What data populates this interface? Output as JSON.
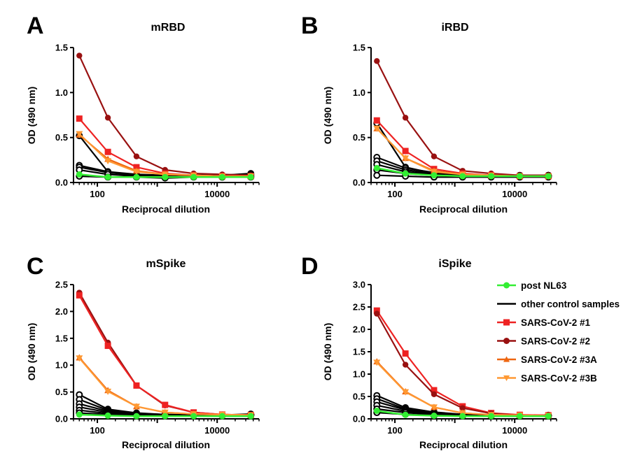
{
  "colors": {
    "post_nl63": "#33ee33",
    "control": "#000000",
    "sars1": "#ee2222",
    "sars2": "#991111",
    "sars3a": "#ee6611",
    "sars3b": "#ff9933"
  },
  "legend": [
    {
      "label": "post NL63",
      "color": "#33ee33",
      "marker": "circle"
    },
    {
      "label": "other control samples",
      "color": "#000000",
      "marker": "none"
    },
    {
      "label": "SARS-CoV-2 #1",
      "color": "#ee2222",
      "marker": "square"
    },
    {
      "label": "SARS-CoV-2 #2",
      "color": "#991111",
      "marker": "circle"
    },
    {
      "label": "SARS-CoV-2 #3A",
      "color": "#ee6611",
      "marker": "triangle-up"
    },
    {
      "label": "SARS-CoV-2 #3B",
      "color": "#ff9933",
      "marker": "triangle-down"
    }
  ],
  "chart_data": [
    {
      "letter": "A",
      "type": "line",
      "title": "mRBD",
      "xlabel": "Reciprocal dilution",
      "ylabel": "OD (490 nm)",
      "xscale": "log",
      "xticks": [
        100,
        10000
      ],
      "xtick_labels": [
        "100",
        "10000"
      ],
      "ylim": [
        0,
        1.5
      ],
      "yticks": [
        "0.0",
        "0.5",
        "1.0",
        "1.5"
      ],
      "x": [
        50,
        150,
        450,
        1350,
        4050,
        12150,
        36450
      ],
      "series": [
        {
          "name": "other control samples",
          "values": [
            0.52,
            0.12,
            0.08,
            0.07,
            0.08,
            0.08,
            0.1
          ]
        },
        {
          "name": "other control samples",
          "values": [
            0.19,
            0.12,
            0.09,
            0.08,
            0.08,
            0.08,
            0.09
          ]
        },
        {
          "name": "other control samples",
          "values": [
            0.17,
            0.11,
            0.08,
            0.07,
            0.07,
            0.07,
            0.08
          ]
        },
        {
          "name": "other control samples",
          "values": [
            0.14,
            0.09,
            0.07,
            0.06,
            0.07,
            0.06,
            0.07
          ]
        },
        {
          "name": "other control samples",
          "values": [
            0.07,
            0.06,
            0.06,
            0.05,
            0.06,
            0.06,
            0.06
          ]
        },
        {
          "name": "SARS-CoV-2 #2",
          "values": [
            1.41,
            0.72,
            0.29,
            0.14,
            0.1,
            0.09,
            0.08
          ]
        },
        {
          "name": "SARS-CoV-2 #1",
          "values": [
            0.71,
            0.34,
            0.17,
            0.1,
            0.08,
            0.07,
            0.07
          ]
        },
        {
          "name": "SARS-CoV-2 #3A",
          "values": [
            0.53,
            0.26,
            0.13,
            0.09,
            0.08,
            0.07,
            0.07
          ]
        },
        {
          "name": "SARS-CoV-2 #3B",
          "values": [
            0.54,
            0.24,
            0.12,
            0.09,
            0.08,
            0.07,
            0.07
          ]
        },
        {
          "name": "post NL63",
          "values": [
            0.09,
            0.06,
            0.06,
            0.06,
            0.06,
            0.06,
            0.06
          ]
        }
      ]
    },
    {
      "letter": "B",
      "type": "line",
      "title": "iRBD",
      "xlabel": "Reciprocal dilution",
      "ylabel": "OD (490 nm)",
      "xscale": "log",
      "xticks": [
        100,
        10000
      ],
      "xtick_labels": [
        "100",
        "10000"
      ],
      "ylim": [
        0,
        1.5
      ],
      "yticks": [
        "0.0",
        "0.5",
        "1.0",
        "1.5"
      ],
      "x": [
        50,
        150,
        450,
        1350,
        4050,
        12150,
        36450
      ],
      "series": [
        {
          "name": "other control samples",
          "values": [
            0.66,
            0.17,
            0.1,
            0.08,
            0.08,
            0.07,
            0.08
          ]
        },
        {
          "name": "other control samples",
          "values": [
            0.28,
            0.16,
            0.11,
            0.09,
            0.08,
            0.08,
            0.08
          ]
        },
        {
          "name": "other control samples",
          "values": [
            0.24,
            0.14,
            0.1,
            0.08,
            0.08,
            0.07,
            0.08
          ]
        },
        {
          "name": "other control samples",
          "values": [
            0.2,
            0.12,
            0.09,
            0.08,
            0.07,
            0.07,
            0.07
          ]
        },
        {
          "name": "other control samples",
          "values": [
            0.14,
            0.1,
            0.08,
            0.07,
            0.07,
            0.07,
            0.07
          ]
        },
        {
          "name": "other control samples",
          "values": [
            0.08,
            0.07,
            0.06,
            0.06,
            0.06,
            0.06,
            0.06
          ]
        },
        {
          "name": "SARS-CoV-2 #2",
          "values": [
            1.35,
            0.72,
            0.29,
            0.13,
            0.1,
            0.08,
            0.08
          ]
        },
        {
          "name": "SARS-CoV-2 #1",
          "values": [
            0.69,
            0.35,
            0.15,
            0.1,
            0.08,
            0.07,
            0.07
          ]
        },
        {
          "name": "SARS-CoV-2 #3A",
          "values": [
            0.6,
            0.27,
            0.13,
            0.09,
            0.08,
            0.07,
            0.07
          ]
        },
        {
          "name": "SARS-CoV-2 #3B",
          "values": [
            0.6,
            0.27,
            0.12,
            0.09,
            0.08,
            0.07,
            0.07
          ]
        },
        {
          "name": "post NL63",
          "values": [
            0.16,
            0.1,
            0.08,
            0.07,
            0.07,
            0.07,
            0.07
          ]
        }
      ]
    },
    {
      "letter": "C",
      "type": "line",
      "title": "mSpike",
      "xlabel": "Reciprocal dilution",
      "ylabel": "OD (490 nm)",
      "xscale": "log",
      "xticks": [
        100,
        10000
      ],
      "xtick_labels": [
        "100",
        "10000"
      ],
      "ylim": [
        0,
        2.5
      ],
      "yticks": [
        "0.0",
        "0.5",
        "1.0",
        "1.5",
        "2.0",
        "2.5"
      ],
      "x": [
        50,
        150,
        450,
        1350,
        4050,
        12150,
        36450
      ],
      "series": [
        {
          "name": "other control samples",
          "values": [
            0.45,
            0.18,
            0.11,
            0.08,
            0.08,
            0.07,
            0.09
          ]
        },
        {
          "name": "other control samples",
          "values": [
            0.36,
            0.16,
            0.1,
            0.08,
            0.07,
            0.07,
            0.08
          ]
        },
        {
          "name": "other control samples",
          "values": [
            0.28,
            0.14,
            0.09,
            0.07,
            0.07,
            0.07,
            0.08
          ]
        },
        {
          "name": "other control samples",
          "values": [
            0.22,
            0.12,
            0.08,
            0.07,
            0.07,
            0.06,
            0.07
          ]
        },
        {
          "name": "other control samples",
          "values": [
            0.16,
            0.1,
            0.07,
            0.06,
            0.06,
            0.06,
            0.07
          ]
        },
        {
          "name": "other control samples",
          "values": [
            0.11,
            0.08,
            0.06,
            0.06,
            0.06,
            0.06,
            0.06
          ]
        },
        {
          "name": "SARS-CoV-2 #2",
          "values": [
            2.35,
            1.42,
            0.62,
            0.25,
            0.12,
            0.08,
            0.07
          ]
        },
        {
          "name": "SARS-CoV-2 #1",
          "values": [
            2.3,
            1.36,
            0.62,
            0.26,
            0.12,
            0.08,
            0.07
          ]
        },
        {
          "name": "SARS-CoV-2 #3A",
          "values": [
            1.14,
            0.53,
            0.23,
            0.12,
            0.09,
            0.08,
            0.07
          ]
        },
        {
          "name": "SARS-CoV-2 #3B",
          "values": [
            1.13,
            0.51,
            0.23,
            0.12,
            0.09,
            0.08,
            0.07
          ]
        },
        {
          "name": "post NL63",
          "values": [
            0.08,
            0.06,
            0.05,
            0.05,
            0.05,
            0.05,
            0.05
          ]
        }
      ]
    },
    {
      "letter": "D",
      "type": "line",
      "title": "iSpike",
      "xlabel": "Reciprocal dilution",
      "ylabel": "OD (490 nm)",
      "xscale": "log",
      "xticks": [
        100,
        10000
      ],
      "xtick_labels": [
        "100",
        "10000"
      ],
      "ylim": [
        0,
        3.0
      ],
      "yticks": [
        "0.0",
        "0.5",
        "1.0",
        "1.5",
        "2.0",
        "2.5",
        "3.0"
      ],
      "x": [
        50,
        150,
        450,
        1350,
        4050,
        12150,
        36450
      ],
      "series": [
        {
          "name": "other control samples",
          "values": [
            0.52,
            0.25,
            0.15,
            0.1,
            0.08,
            0.08,
            0.08
          ]
        },
        {
          "name": "other control samples",
          "values": [
            0.45,
            0.22,
            0.13,
            0.09,
            0.08,
            0.07,
            0.08
          ]
        },
        {
          "name": "other control samples",
          "values": [
            0.38,
            0.2,
            0.12,
            0.09,
            0.07,
            0.07,
            0.07
          ]
        },
        {
          "name": "other control samples",
          "values": [
            0.3,
            0.17,
            0.11,
            0.08,
            0.07,
            0.07,
            0.07
          ]
        },
        {
          "name": "other control samples",
          "values": [
            0.22,
            0.14,
            0.09,
            0.07,
            0.07,
            0.06,
            0.07
          ]
        },
        {
          "name": "other control samples",
          "values": [
            0.14,
            0.1,
            0.07,
            0.06,
            0.06,
            0.06,
            0.06
          ]
        },
        {
          "name": "SARS-CoV-2 #1",
          "values": [
            2.42,
            1.46,
            0.64,
            0.28,
            0.13,
            0.09,
            0.08
          ]
        },
        {
          "name": "SARS-CoV-2 #2",
          "values": [
            2.35,
            1.21,
            0.55,
            0.24,
            0.12,
            0.08,
            0.07
          ]
        },
        {
          "name": "SARS-CoV-2 #3A",
          "values": [
            1.28,
            0.61,
            0.26,
            0.13,
            0.09,
            0.08,
            0.07
          ]
        },
        {
          "name": "SARS-CoV-2 #3B",
          "values": [
            1.26,
            0.6,
            0.26,
            0.13,
            0.09,
            0.08,
            0.07
          ]
        },
        {
          "name": "post NL63",
          "values": [
            0.18,
            0.09,
            0.07,
            0.06,
            0.06,
            0.06,
            0.06
          ]
        }
      ]
    }
  ]
}
